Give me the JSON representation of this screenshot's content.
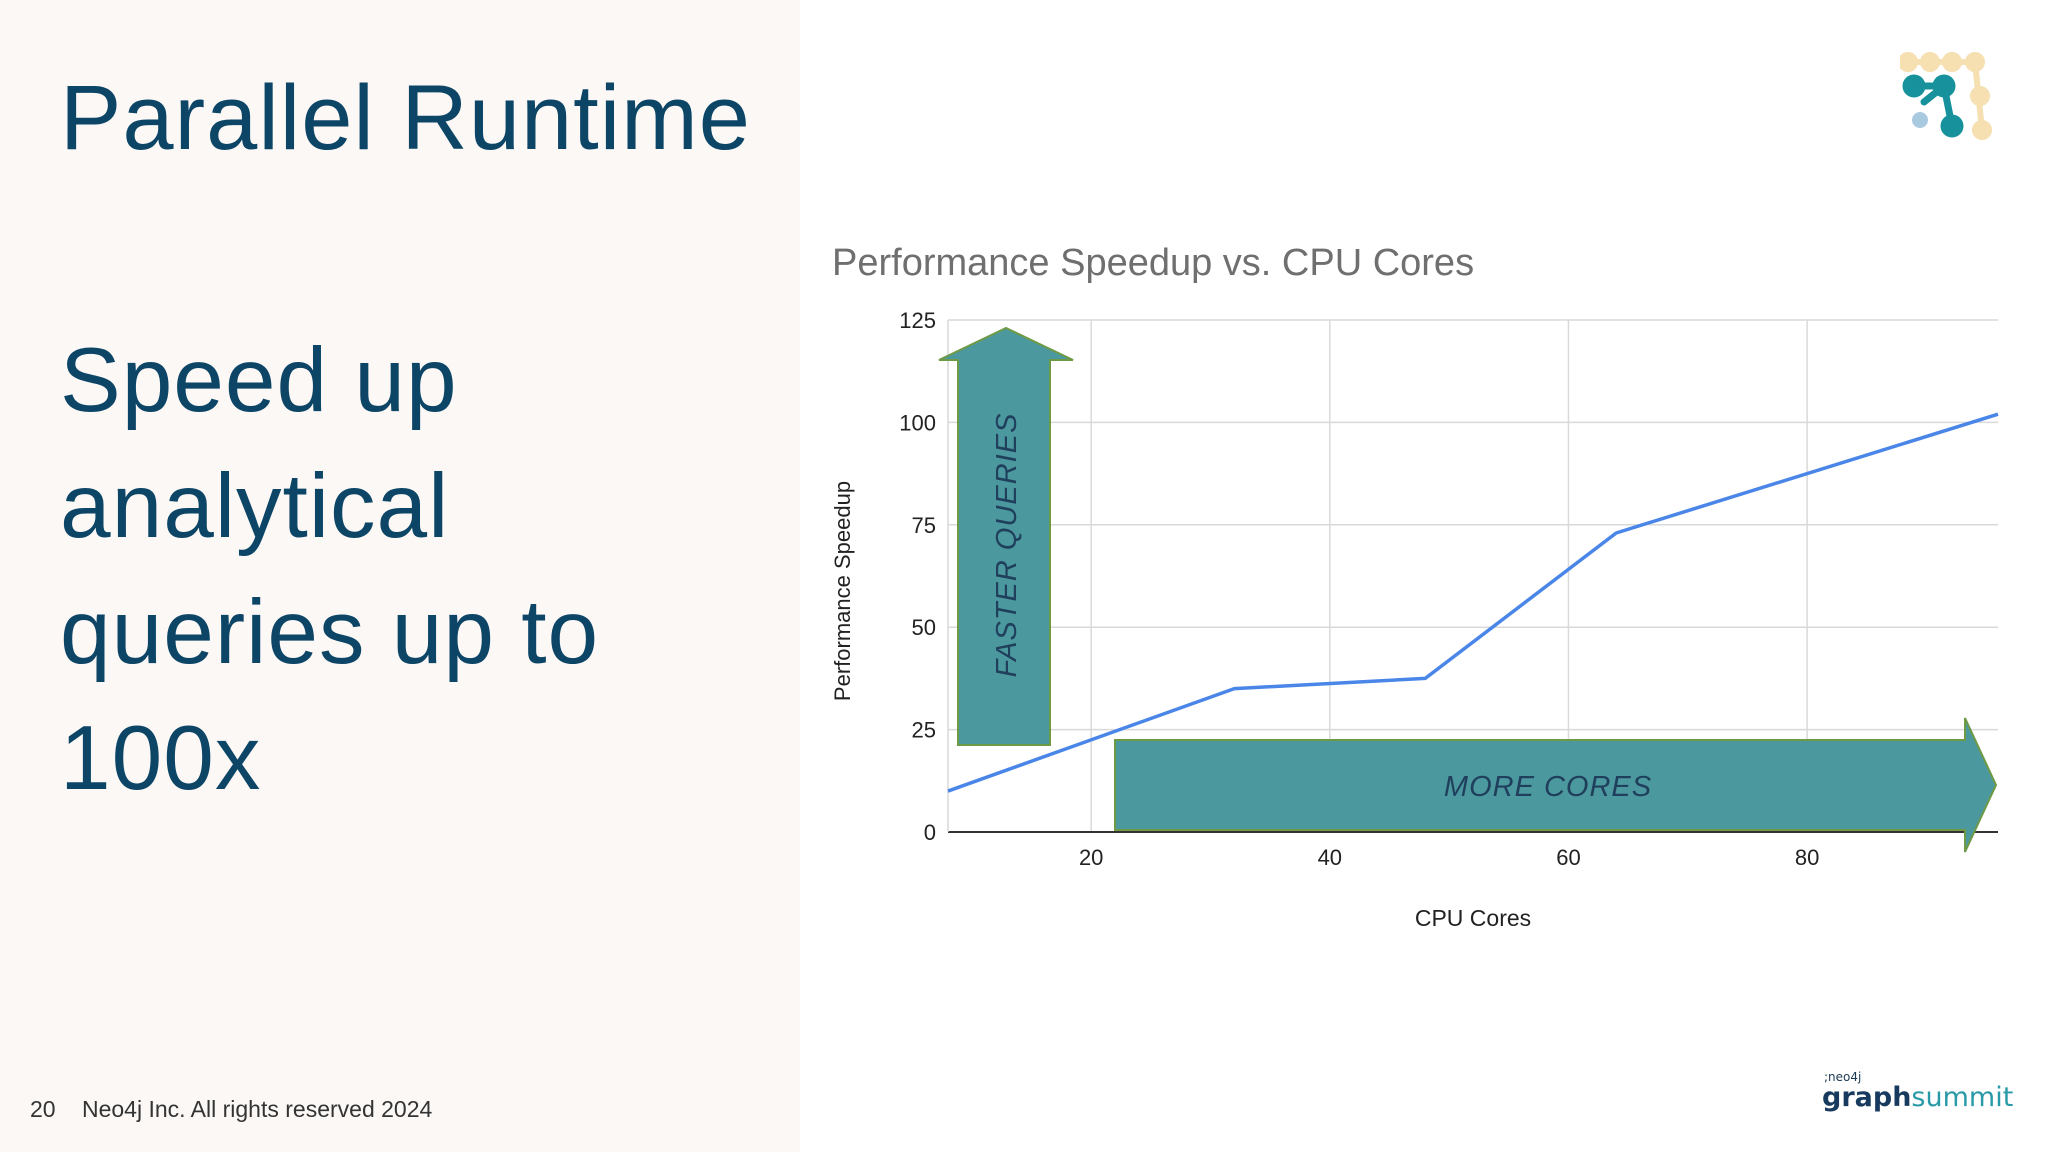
{
  "slide": {
    "title": "Parallel Runtime",
    "subtitle": "Speed up analytical queries up to 100x",
    "footer_page": "20",
    "footer_text": "Neo4j Inc. All rights reserved 2024"
  },
  "brand": {
    "small": ";neo4j",
    "graph": "graph",
    "summit": "summit"
  },
  "colors": {
    "title_text": "#0d4566",
    "left_panel_bg": "#fbf8f6",
    "series_line": "#4a86e8",
    "arrow_fill": "#4b989e",
    "arrow_stroke": "#6e9a45",
    "arrow_text": "#1f3f5c",
    "gridline": "#d9d9d9",
    "chart_title": "#6f6f6f"
  },
  "icons": [
    "neo4j-logo-icon",
    "graphsummit-logo"
  ],
  "chart_data": {
    "type": "line",
    "title": "Performance Speedup vs. CPU Cores",
    "xlabel": "CPU Cores",
    "ylabel": "Performance Speedup",
    "xlim": [
      8,
      96
    ],
    "ylim": [
      0,
      125
    ],
    "x_ticks": [
      "20",
      "40",
      "60",
      "80"
    ],
    "y_ticks": [
      "0",
      "25",
      "50",
      "75",
      "100",
      "125"
    ],
    "grid": true,
    "series": [
      {
        "x": [
          8,
          32,
          48,
          64,
          96
        ],
        "y": [
          10,
          35,
          37.5,
          73,
          102
        ]
      }
    ],
    "annotations": [
      {
        "text": "FASTER QUERIES",
        "direction": "up"
      },
      {
        "text": "MORE CORES",
        "direction": "right"
      }
    ]
  }
}
